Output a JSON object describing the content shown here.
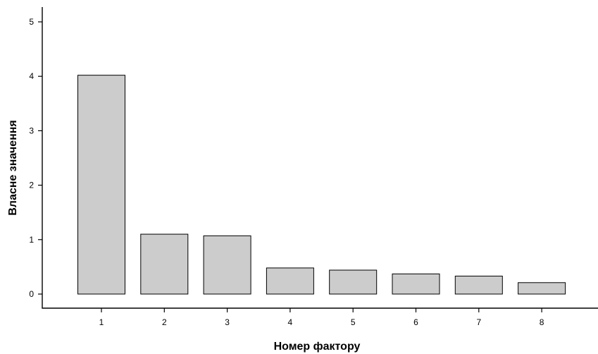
{
  "chart_data": {
    "type": "bar",
    "categories": [
      "1",
      "2",
      "3",
      "4",
      "5",
      "6",
      "7",
      "8"
    ],
    "values": [
      4.02,
      1.1,
      1.07,
      0.48,
      0.44,
      0.37,
      0.33,
      0.21
    ],
    "xlabel": "Номер фактору",
    "ylabel": "Власне значення",
    "ylim": [
      0,
      5
    ],
    "yticks": [
      "0",
      "1",
      "2",
      "3",
      "4",
      "5"
    ],
    "grid": false,
    "bar_color": "#cccccc"
  }
}
